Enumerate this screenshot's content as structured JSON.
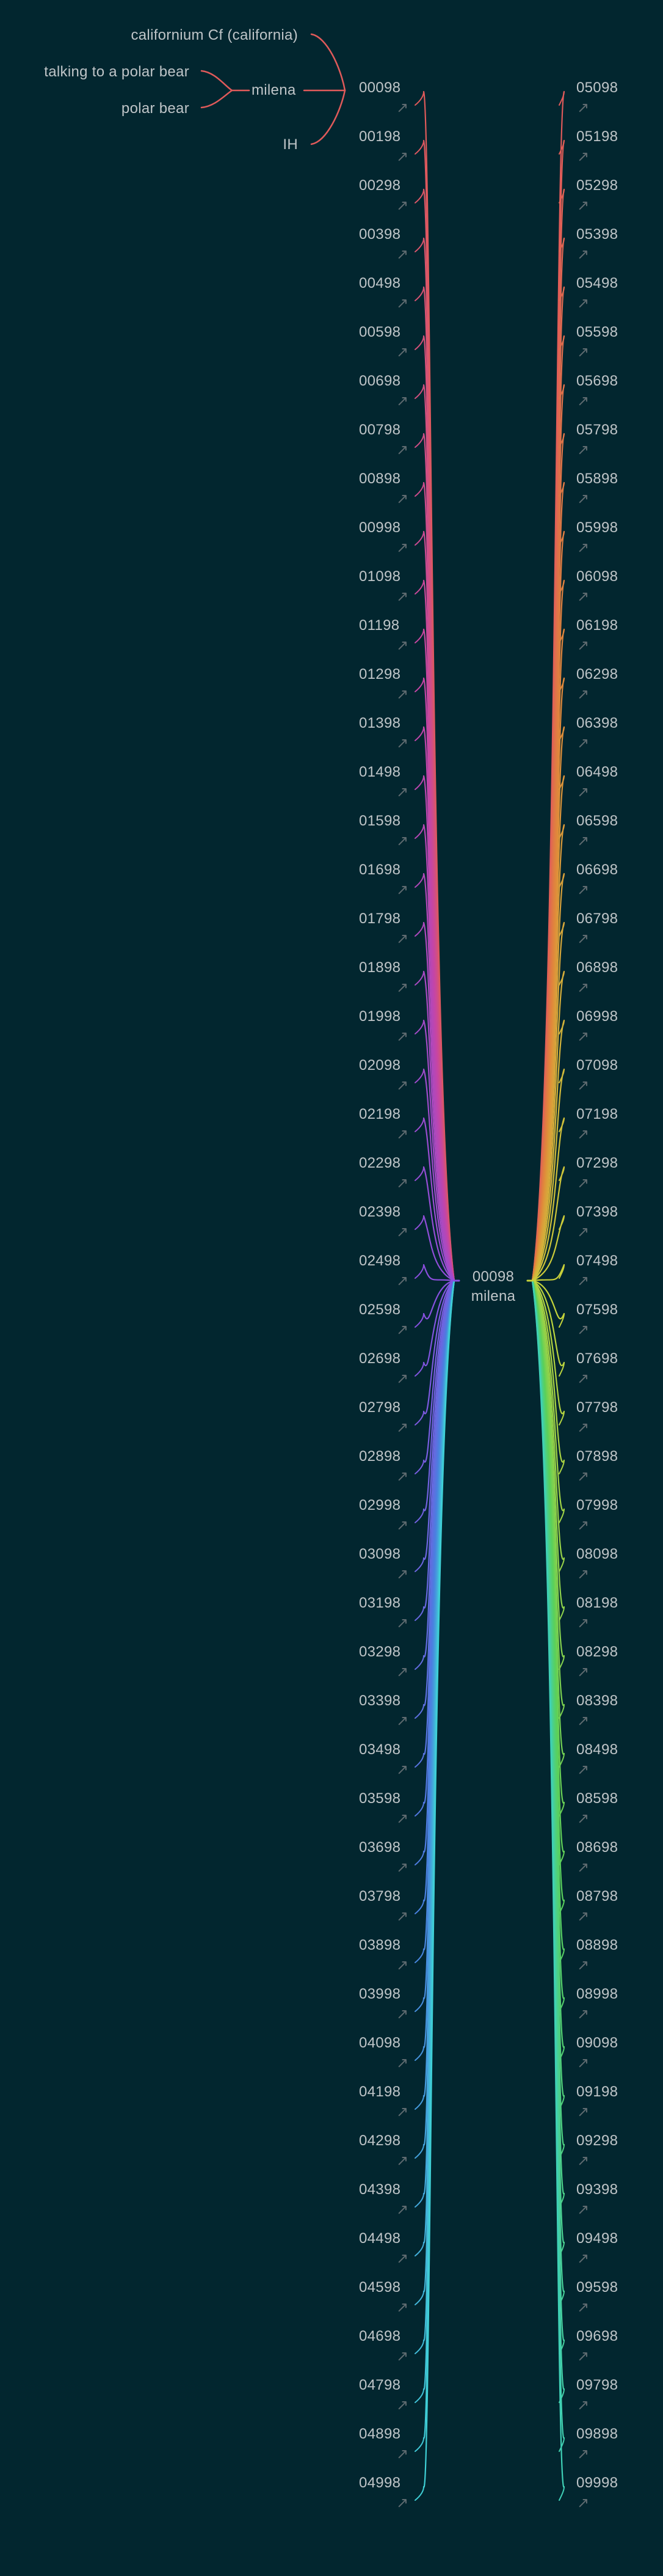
{
  "title_node": {
    "code": "00098",
    "name": "milena",
    "parents": [
      {
        "label": "californium Cf (california)"
      },
      {
        "label": "milena",
        "children": [
          "talking to a polar bear",
          "polar bear"
        ]
      },
      {
        "label": "IH"
      }
    ]
  },
  "center_node": {
    "code": "00098",
    "name": "milena"
  },
  "left_column": [
    "00098",
    "00198",
    "00298",
    "00398",
    "00498",
    "00598",
    "00698",
    "00798",
    "00898",
    "00998",
    "01098",
    "01198",
    "01298",
    "01398",
    "01498",
    "01598",
    "01698",
    "01798",
    "01898",
    "01998",
    "02098",
    "02198",
    "02298",
    "02398",
    "02498",
    "02598",
    "02698",
    "02798",
    "02898",
    "02998",
    "03098",
    "03198",
    "03298",
    "03398",
    "03498",
    "03598",
    "03698",
    "03798",
    "03898",
    "03998",
    "04098",
    "04198",
    "04298",
    "04398",
    "04498",
    "04598",
    "04698",
    "04798",
    "04898",
    "04998"
  ],
  "right_column": [
    "05098",
    "05198",
    "05298",
    "05398",
    "05498",
    "05598",
    "05698",
    "05798",
    "05898",
    "05998",
    "06098",
    "06198",
    "06298",
    "06398",
    "06498",
    "06598",
    "06698",
    "06798",
    "06898",
    "06998",
    "07098",
    "07198",
    "07298",
    "07398",
    "07498",
    "07598",
    "07698",
    "07798",
    "07898",
    "07998",
    "08098",
    "08198",
    "08298",
    "08398",
    "08498",
    "08598",
    "08698",
    "08798",
    "08898",
    "08998",
    "09098",
    "09198",
    "09298",
    "09398",
    "09498",
    "09598",
    "09698",
    "09798",
    "09898",
    "09998"
  ],
  "icons": {
    "link_marker": "arrow-icon"
  },
  "colors": {
    "background": "#02262f",
    "text": "#bfc5c8",
    "arrow": "#5f6b70",
    "top_branch": "#e05a5a",
    "left_gradient": [
      "#e05a5a",
      "#c445a8",
      "#8a4fe0",
      "#4a7fe0",
      "#3fd0d6"
    ],
    "right_gradient": [
      "#e05a5a",
      "#e08a3a",
      "#c8d43a",
      "#5ad05a",
      "#3fd0b6"
    ]
  }
}
